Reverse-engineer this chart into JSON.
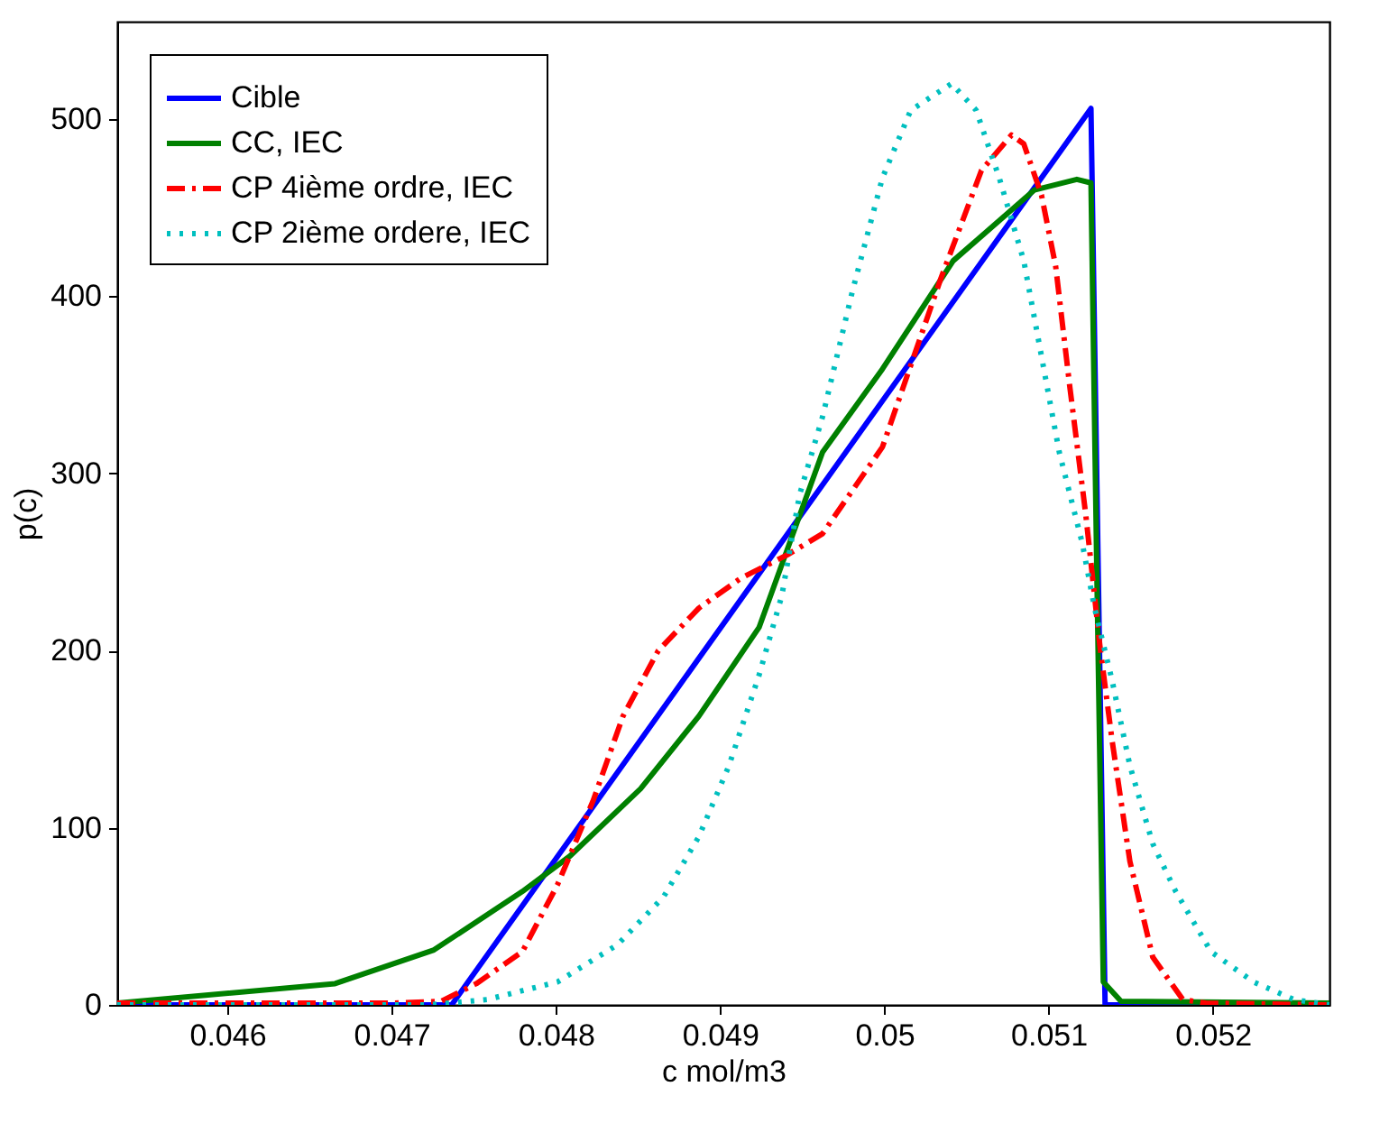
{
  "chart_data": {
    "type": "line",
    "xlabel": "c mol/m3",
    "ylabel": "p(c)",
    "xlim": [
      0.04533,
      0.05271
    ],
    "ylim": [
      0,
      555
    ],
    "xticks": [
      0.046,
      0.047,
      0.048,
      0.049,
      0.05,
      0.051,
      0.052
    ],
    "yticks": [
      0,
      100,
      200,
      300,
      400,
      500
    ],
    "grid": false,
    "legend": "top left",
    "marker": "none",
    "series": [
      {
        "name": "Cible",
        "color": "#0000ff",
        "line_style": "solid",
        "x": [
          0.04533,
          0.047366,
          0.051258,
          0.051344,
          0.05271
        ],
        "values": [
          0,
          0,
          506,
          0,
          0
        ]
      },
      {
        "name": "CC, IEC",
        "color": "#008000",
        "line_style": "solid",
        "x": [
          0.04533,
          0.046656,
          0.047258,
          0.047796,
          0.048086,
          0.048516,
          0.048871,
          0.049237,
          0.049409,
          0.049624,
          0.049989,
          0.050419,
          0.050914,
          0.051172,
          0.051258,
          0.05129,
          0.051333,
          0.051441,
          0.05271
        ],
        "values": [
          1,
          12,
          31,
          64,
          84,
          122,
          163,
          213,
          257,
          312,
          359,
          420,
          460,
          466,
          464,
          266,
          13,
          2,
          1
        ]
      },
      {
        "name": "CP 4ième ordre, IEC",
        "color": "#ff0000",
        "line_style": "dashed",
        "x": [
          0.04533,
          0.047011,
          0.047301,
          0.047516,
          0.047796,
          0.048011,
          0.048226,
          0.048409,
          0.048624,
          0.048871,
          0.049129,
          0.049409,
          0.049624,
          0.049989,
          0.050344,
          0.050591,
          0.050774,
          0.050849,
          0.050957,
          0.051043,
          0.051129,
          0.051226,
          0.051312,
          0.051387,
          0.051495,
          0.051634,
          0.051817,
          0.051957,
          0.05271
        ],
        "values": [
          1,
          1,
          2,
          12,
          30,
          68,
          115,
          163,
          200,
          224,
          241,
          254,
          266,
          315,
          410,
          471,
          491,
          486,
          457,
          417,
          349,
          277,
          203,
          149,
          81,
          27,
          3,
          1,
          0
        ]
      },
      {
        "name": "CP 2ième ordere, IEC",
        "color": "#00bfbf",
        "line_style": "dotted",
        "x": [
          0.04533,
          0.047226,
          0.047581,
          0.048011,
          0.048376,
          0.048656,
          0.048871,
          0.049054,
          0.049237,
          0.049376,
          0.049484,
          0.049624,
          0.049806,
          0.049989,
          0.050161,
          0.050409,
          0.050559,
          0.050699,
          0.050849,
          0.050957,
          0.051065,
          0.051204,
          0.05128,
          0.051387,
          0.051495,
          0.051634,
          0.051774,
          0.051989,
          0.052247,
          0.052495,
          0.05271
        ],
        "values": [
          0,
          0,
          3,
          13,
          34,
          61,
          95,
          135,
          186,
          231,
          288,
          332,
          403,
          467,
          505,
          520,
          505,
          467,
          420,
          366,
          312,
          261,
          224,
          183,
          135,
          91,
          64,
          30,
          13,
          3,
          0
        ]
      }
    ]
  }
}
